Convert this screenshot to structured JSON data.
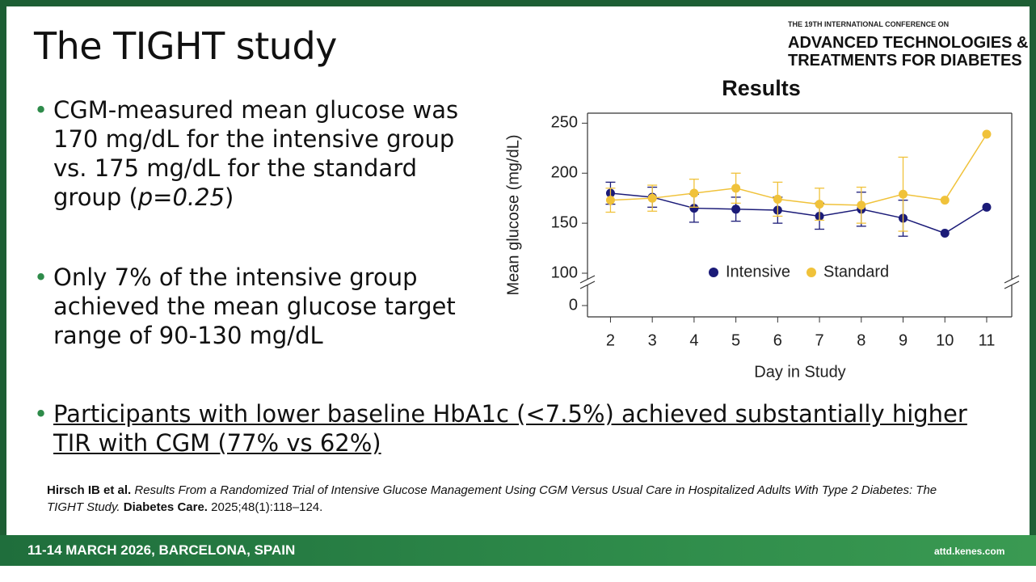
{
  "header": {
    "title": "The TIGHT study",
    "conference_small": "THE 19TH INTERNATIONAL CONFERENCE ON",
    "conference_line1": "ADVANCED TECHNOLOGIES &",
    "conference_line2": "TREATMENTS FOR DIABETES"
  },
  "bullets": [
    {
      "parts": [
        "CGM-measured mean glucose was 170 mg/dL for the intensive group vs. 175 mg/dL for the standard group (",
        "p=0.25",
        ")"
      ]
    },
    {
      "parts": [
        "Only 7% of the intensive group achieved the mean glucose target range of 90-130 mg/dL"
      ]
    },
    {
      "parts": [
        "Participants with lower baseline HbA1c (<7.5%) achieved substantially higher TIR with CGM (77% vs 62%)"
      ]
    }
  ],
  "reference": {
    "authors": "Hirsch IB et al.",
    "title": "Results From a Randomized Trial of Intensive Glucose Management Using CGM Versus Usual Care in Hospitalized Adults With Type 2 Diabetes: The TIGHT Study.",
    "journal": "Diabetes Care.",
    "citation": "2025;48(1):118–124."
  },
  "footer": {
    "date": "11-14 MARCH 2026, BARCELONA, SPAIN",
    "url": "attd.kenes.com"
  },
  "chart_data": {
    "type": "line",
    "title": "Results",
    "x_label": "Day in Study",
    "y_label": "Mean glucose (mg/dL)",
    "x": [
      2,
      3,
      4,
      5,
      6,
      7,
      8,
      9,
      10,
      11
    ],
    "xlim": [
      1.45,
      11.6
    ],
    "xticks": [
      2,
      3,
      4,
      5,
      6,
      7,
      8,
      9,
      10,
      11
    ],
    "ylim": [
      0,
      260
    ],
    "yticks": [
      0,
      100,
      150,
      200,
      250
    ],
    "y_axis_break": [
      0,
      100
    ],
    "legend": "lower center",
    "series": [
      {
        "name": "Intensive",
        "color": "#1b1b78",
        "values": [
          180,
          176,
          165,
          164,
          163,
          157,
          164,
          155,
          140,
          166
        ],
        "errors": [
          11,
          10,
          14,
          12,
          13,
          13,
          17,
          18,
          null,
          null
        ]
      },
      {
        "name": "Standard",
        "color": "#f0c23a",
        "values": [
          173,
          175,
          180,
          185,
          174,
          169,
          168,
          179,
          173,
          239
        ],
        "errors": [
          12,
          13,
          14,
          15,
          17,
          16,
          18,
          37,
          null,
          null
        ]
      }
    ]
  }
}
